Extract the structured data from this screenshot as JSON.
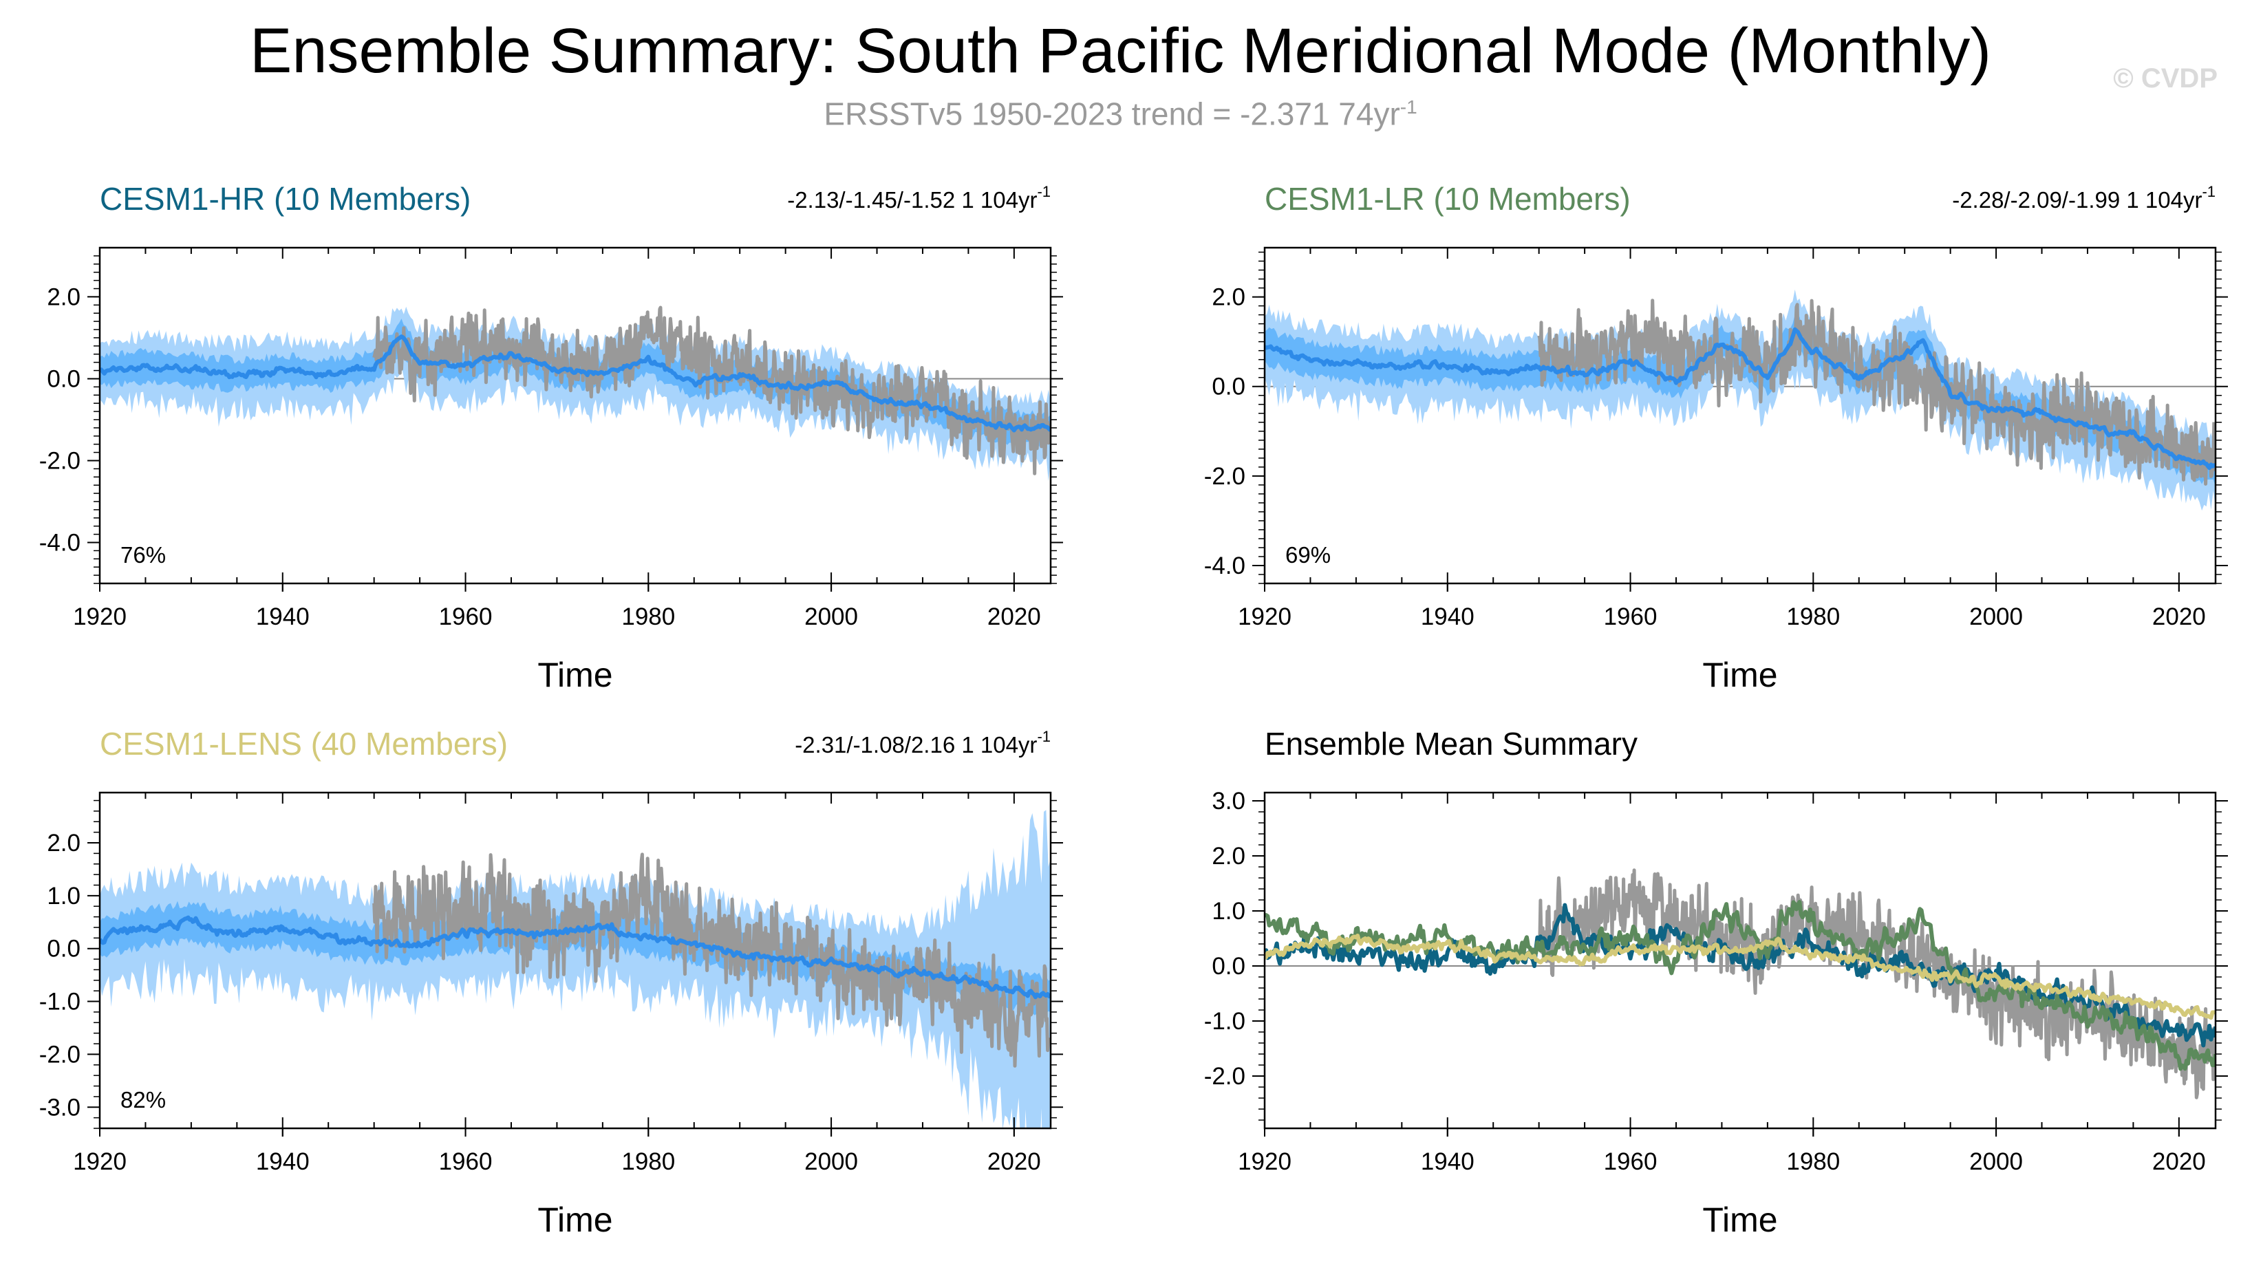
{
  "title": "Ensemble Summary: South Pacific Meridional Mode (Monthly)",
  "subtitle": {
    "text": "ERSSTv5 1950-2023 trend = -2.371 74yr",
    "exponent": "-1"
  },
  "watermark": "© CVDP",
  "colors": {
    "obs": "#999999",
    "ens_mean": "#2d8ae8",
    "spread_inner": "#5ab0fa",
    "spread_outer": "#a8d4fc",
    "cesm1_hr": "#0e6484",
    "cesm1_lr": "#5c8a5c",
    "cesm1_lens": "#d3c979"
  },
  "chart_data": [
    {
      "type": "line",
      "title": "CESM1-HR (10 Members)",
      "title_color": "#0e6484",
      "trend_text": "-2.13/-1.45/-1.52 1 104yr",
      "trend_exponent": "-1",
      "percent_label": "76%",
      "xlabel": "Time",
      "ylabel": "",
      "xlim": [
        1920,
        2024
      ],
      "ylim": [
        -5.0,
        3.2
      ],
      "xticks": [
        "1920",
        "1940",
        "1960",
        "1980",
        "2000",
        "2020"
      ],
      "yticks": [
        "2.0",
        "0.0",
        "-2.0",
        "-4.0"
      ],
      "ytick_values": [
        2.0,
        0.0,
        -2.0,
        -4.0
      ],
      "spread_outer_scale": 1.15,
      "obs_start": 1950,
      "series": [
        {
          "name": "Ensemble mean",
          "x": [
            1920,
            1925,
            1930,
            1935,
            1940,
            1945,
            1950,
            1953,
            1955,
            1960,
            1965,
            1970,
            1975,
            1980,
            1985,
            1990,
            1995,
            2000,
            2005,
            2010,
            2015,
            2020,
            2024
          ],
          "values": [
            0.2,
            0.3,
            0.2,
            0.1,
            0.2,
            0.1,
            0.3,
            1.0,
            0.4,
            0.3,
            0.6,
            0.2,
            0.1,
            0.5,
            -0.1,
            0.1,
            -0.2,
            -0.1,
            -0.5,
            -0.6,
            -1.0,
            -1.2,
            -1.2
          ]
        },
        {
          "name": "ERSSTv5",
          "x": [
            1950,
            1955,
            1960,
            1965,
            1970,
            1975,
            1980,
            1985,
            1990,
            1995,
            2000,
            2005,
            2010,
            2015,
            2020,
            2023
          ],
          "values": [
            0.6,
            0.5,
            0.9,
            0.7,
            0.4,
            0.3,
            1.1,
            0.6,
            0.2,
            0.0,
            -0.3,
            -0.6,
            -0.4,
            -1.0,
            -1.4,
            -1.2
          ]
        }
      ]
    },
    {
      "type": "line",
      "title": "CESM1-LR (10 Members)",
      "title_color": "#5c8a5c",
      "trend_text": "-2.28/-2.09/-1.99 1 104yr",
      "trend_exponent": "-1",
      "percent_label": "69%",
      "xlabel": "Time",
      "ylabel": "",
      "xlim": [
        1920,
        2024
      ],
      "ylim": [
        -4.4,
        3.1
      ],
      "xticks": [
        "1920",
        "1940",
        "1960",
        "1980",
        "2000",
        "2020"
      ],
      "yticks": [
        "2.0",
        "0.0",
        "-2.0",
        "-4.0"
      ],
      "ytick_values": [
        2.0,
        0.0,
        -2.0,
        -4.0
      ],
      "spread_outer_scale": 1.15,
      "obs_start": 1950,
      "series": [
        {
          "name": "Ensemble mean",
          "x": [
            1920,
            1925,
            1930,
            1935,
            1940,
            1945,
            1950,
            1955,
            1960,
            1965,
            1970,
            1975,
            1978,
            1980,
            1985,
            1990,
            1992,
            1995,
            2000,
            2005,
            2010,
            2015,
            2020,
            2024
          ],
          "values": [
            0.9,
            0.6,
            0.5,
            0.4,
            0.5,
            0.3,
            0.4,
            0.3,
            0.5,
            0.1,
            1.0,
            0.2,
            1.2,
            0.8,
            0.2,
            0.7,
            1.0,
            -0.2,
            -0.5,
            -0.6,
            -0.9,
            -1.1,
            -1.6,
            -1.8
          ]
        },
        {
          "name": "ERSSTv5",
          "x": [
            1950,
            1955,
            1960,
            1965,
            1970,
            1975,
            1980,
            1985,
            1990,
            1995,
            2000,
            2005,
            2010,
            2015,
            2020,
            2023
          ],
          "values": [
            0.6,
            0.8,
            1.0,
            0.9,
            0.5,
            0.6,
            1.2,
            0.4,
            0.3,
            -0.2,
            -0.6,
            -0.8,
            -0.7,
            -1.1,
            -1.5,
            -1.4
          ]
        }
      ]
    },
    {
      "type": "line",
      "title": "CESM1-LENS (40 Members)",
      "title_color": "#d3c979",
      "trend_text": "-2.31/-1.08/2.16 1 104yr",
      "trend_exponent": "-1",
      "percent_label": "82%",
      "xlabel": "Time",
      "ylabel": "",
      "xlim": [
        1920,
        2024
      ],
      "ylim": [
        -3.4,
        2.95
      ],
      "xticks": [
        "1920",
        "1940",
        "1960",
        "1980",
        "2000",
        "2020"
      ],
      "yticks": [
        "2.0",
        "1.0",
        "0.0",
        "-1.0",
        "-2.0",
        "-3.0"
      ],
      "ytick_values": [
        2.0,
        1.0,
        0.0,
        -1.0,
        -2.0,
        -3.0
      ],
      "spread_outer_scale": 1.5,
      "obs_start": 1950,
      "series": [
        {
          "name": "Ensemble mean",
          "x": [
            1920,
            1925,
            1930,
            1935,
            1940,
            1945,
            1950,
            1955,
            1960,
            1965,
            1970,
            1975,
            1980,
            1985,
            1990,
            1995,
            2000,
            2005,
            2010,
            2015,
            2020,
            2024
          ],
          "values": [
            0.2,
            0.4,
            0.5,
            0.3,
            0.4,
            0.2,
            0.1,
            0.1,
            0.3,
            0.3,
            0.3,
            0.4,
            0.2,
            0.1,
            -0.1,
            -0.2,
            -0.3,
            -0.4,
            -0.5,
            -0.6,
            -0.8,
            -0.9
          ]
        },
        {
          "name": "ERSSTv5",
          "x": [
            1950,
            1955,
            1960,
            1965,
            1970,
            1975,
            1980,
            1985,
            1990,
            1995,
            2000,
            2005,
            2010,
            2015,
            2020,
            2023
          ],
          "values": [
            0.5,
            0.6,
            0.9,
            0.7,
            0.3,
            0.4,
            1.0,
            0.4,
            0.2,
            0.0,
            -0.4,
            -0.7,
            -0.6,
            -1.0,
            -1.3,
            -1.2
          ]
        }
      ]
    },
    {
      "type": "line",
      "title": "Ensemble Mean Summary",
      "title_color": "#000000",
      "trend_text": "",
      "trend_exponent": "",
      "percent_label": "",
      "xlabel": "Time",
      "ylabel": "",
      "xlim": [
        1920,
        2024
      ],
      "ylim": [
        -2.95,
        3.15
      ],
      "xticks": [
        "1920",
        "1940",
        "1960",
        "1980",
        "2000",
        "2020"
      ],
      "yticks": [
        "3.0",
        "2.0",
        "1.0",
        "0.0",
        "-1.0",
        "-2.0"
      ],
      "ytick_values": [
        3.0,
        2.0,
        1.0,
        0.0,
        -1.0,
        -2.0
      ],
      "spread_outer_scale": 0,
      "obs_start": 1950,
      "series": [
        {
          "name": "ERSSTv5",
          "x": [
            1950,
            1955,
            1960,
            1965,
            1970,
            1975,
            1980,
            1985,
            1990,
            1995,
            2000,
            2005,
            2010,
            2015,
            2020,
            2023
          ],
          "values": [
            0.6,
            0.7,
            1.2,
            0.9,
            0.4,
            0.3,
            1.0,
            0.5,
            0.3,
            -0.2,
            -0.7,
            -0.9,
            -0.8,
            -1.1,
            -1.6,
            -1.5
          ]
        },
        {
          "name": "CESM1-HR",
          "x": [
            1920,
            1925,
            1930,
            1935,
            1940,
            1945,
            1950,
            1953,
            1955,
            1960,
            1965,
            1970,
            1975,
            1980,
            1985,
            1990,
            1995,
            2000,
            2005,
            2010,
            2015,
            2020,
            2024
          ],
          "values": [
            0.2,
            0.3,
            0.2,
            0.1,
            0.2,
            0.1,
            0.3,
            1.0,
            0.4,
            0.3,
            0.6,
            0.2,
            0.1,
            0.5,
            -0.1,
            0.1,
            -0.2,
            -0.1,
            -0.5,
            -0.6,
            -1.0,
            -1.2,
            -1.2
          ]
        },
        {
          "name": "CESM1-LR",
          "x": [
            1920,
            1925,
            1930,
            1935,
            1940,
            1945,
            1950,
            1955,
            1960,
            1965,
            1970,
            1975,
            1978,
            1980,
            1985,
            1990,
            1992,
            1995,
            2000,
            2005,
            2010,
            2015,
            2020,
            2024
          ],
          "values": [
            0.9,
            0.6,
            0.5,
            0.4,
            0.5,
            0.3,
            0.4,
            0.3,
            0.5,
            0.1,
            1.0,
            0.2,
            1.2,
            0.8,
            0.2,
            0.7,
            1.0,
            -0.2,
            -0.5,
            -0.6,
            -0.9,
            -1.1,
            -1.6,
            -1.8
          ]
        },
        {
          "name": "CESM1-LENS",
          "x": [
            1920,
            1925,
            1930,
            1935,
            1940,
            1945,
            1950,
            1955,
            1960,
            1965,
            1970,
            1975,
            1980,
            1985,
            1990,
            1995,
            2000,
            2005,
            2010,
            2015,
            2020,
            2024
          ],
          "values": [
            0.2,
            0.4,
            0.5,
            0.3,
            0.4,
            0.2,
            0.1,
            0.1,
            0.3,
            0.3,
            0.3,
            0.4,
            0.2,
            0.1,
            -0.1,
            -0.2,
            -0.3,
            -0.4,
            -0.5,
            -0.6,
            -0.8,
            -0.9
          ]
        }
      ]
    }
  ]
}
